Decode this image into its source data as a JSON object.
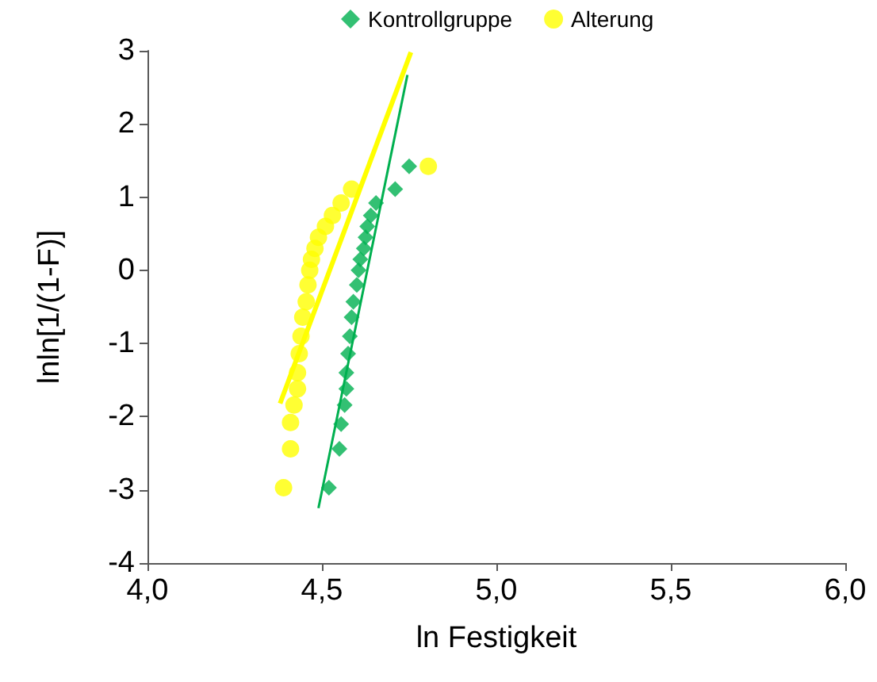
{
  "chart_data": {
    "type": "scatter",
    "xlabel": "ln Festigkeit",
    "ylabel": "lnln[1/(1-F)]",
    "xlim": [
      4,
      6
    ],
    "xticks": [
      {
        "value": 4,
        "label": "4,0"
      },
      {
        "value": 4.5,
        "label": "4,5"
      },
      {
        "value": 5,
        "label": "5,0"
      },
      {
        "value": 5.5,
        "label": "5,5"
      },
      {
        "value": 6,
        "label": "6,0"
      }
    ],
    "ylim": [
      -4,
      3
    ],
    "yticks": [
      -4,
      -3,
      -2,
      -1,
      0,
      1,
      2,
      3
    ],
    "grid": false,
    "legend": "top",
    "series": [
      {
        "name": "Kontrollgruppe",
        "color": "#00b050",
        "marker": "diamond",
        "x": [
          4.52,
          4.55,
          4.555,
          4.565,
          4.57,
          4.57,
          4.575,
          4.58,
          4.585,
          4.59,
          4.6,
          4.605,
          4.61,
          4.62,
          4.625,
          4.63,
          4.64,
          4.655,
          4.71,
          4.75
        ],
        "values": [
          -2.97,
          -2.44,
          -2.1,
          -1.84,
          -1.62,
          -1.4,
          -1.14,
          -0.9,
          -0.64,
          -0.43,
          -0.2,
          0,
          0.15,
          0.3,
          0.45,
          0.6,
          0.75,
          0.92,
          1.11,
          1.42
        ]
      },
      {
        "name": "Alterung",
        "color": "#ffff00",
        "marker": "circle",
        "x": [
          4.39,
          4.41,
          4.41,
          4.42,
          4.43,
          4.43,
          4.435,
          4.44,
          4.445,
          4.455,
          4.46,
          4.465,
          4.47,
          4.48,
          4.49,
          4.51,
          4.53,
          4.555,
          4.585,
          4.805
        ],
        "values": [
          -2.97,
          -2.44,
          -2.08,
          -1.84,
          -1.62,
          -1.4,
          -1.14,
          -0.9,
          -0.64,
          -0.43,
          -0.2,
          0,
          0.15,
          0.3,
          0.45,
          0.6,
          0.75,
          0.92,
          1.11,
          1.42
        ]
      },
      {
        "type": "line",
        "color": "#00b050",
        "marker": "none",
        "x": [
          4.49,
          4.745
        ],
        "values": [
          -3.25,
          2.67
        ]
      },
      {
        "type": "line",
        "color": "#ffff00",
        "marker": "none",
        "x": [
          4.38,
          4.755
        ],
        "values": [
          -1.82,
          2.98
        ]
      }
    ]
  }
}
